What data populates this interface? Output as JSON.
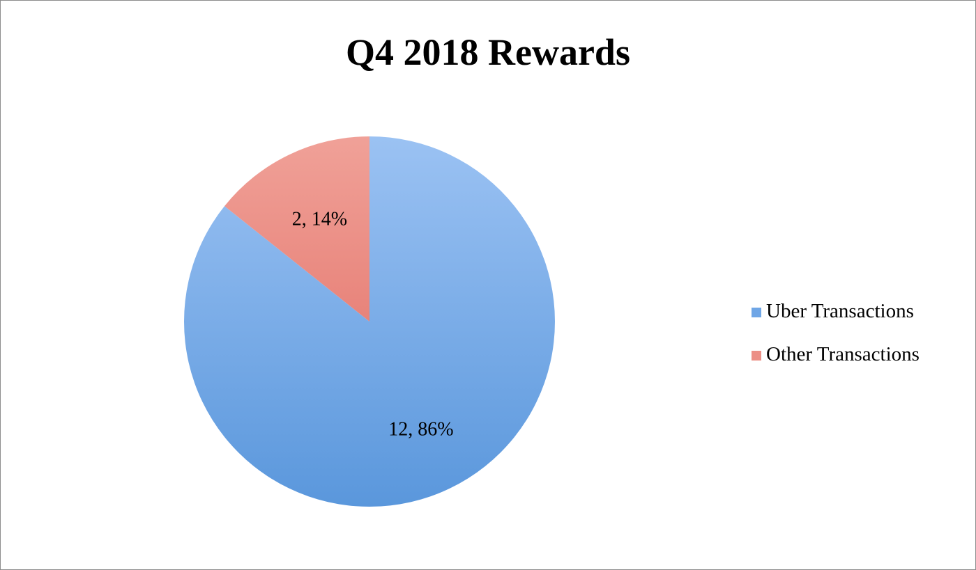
{
  "chart_data": {
    "type": "pie",
    "title": "Q4 2018 Rewards",
    "slices": [
      {
        "name": "Uber Transactions",
        "value": 12,
        "percent": 86,
        "label": "12, 86%",
        "color": "#6fa6e6",
        "color_light": "#9bc2f3",
        "color_dark": "#5a97dc"
      },
      {
        "name": "Other Transactions",
        "value": 2,
        "percent": 14,
        "label": "2, 14%",
        "color": "#ec8f86",
        "color_light": "#f0a198",
        "color_dark": "#e8837a"
      }
    ],
    "legend": {
      "position": "right"
    }
  }
}
